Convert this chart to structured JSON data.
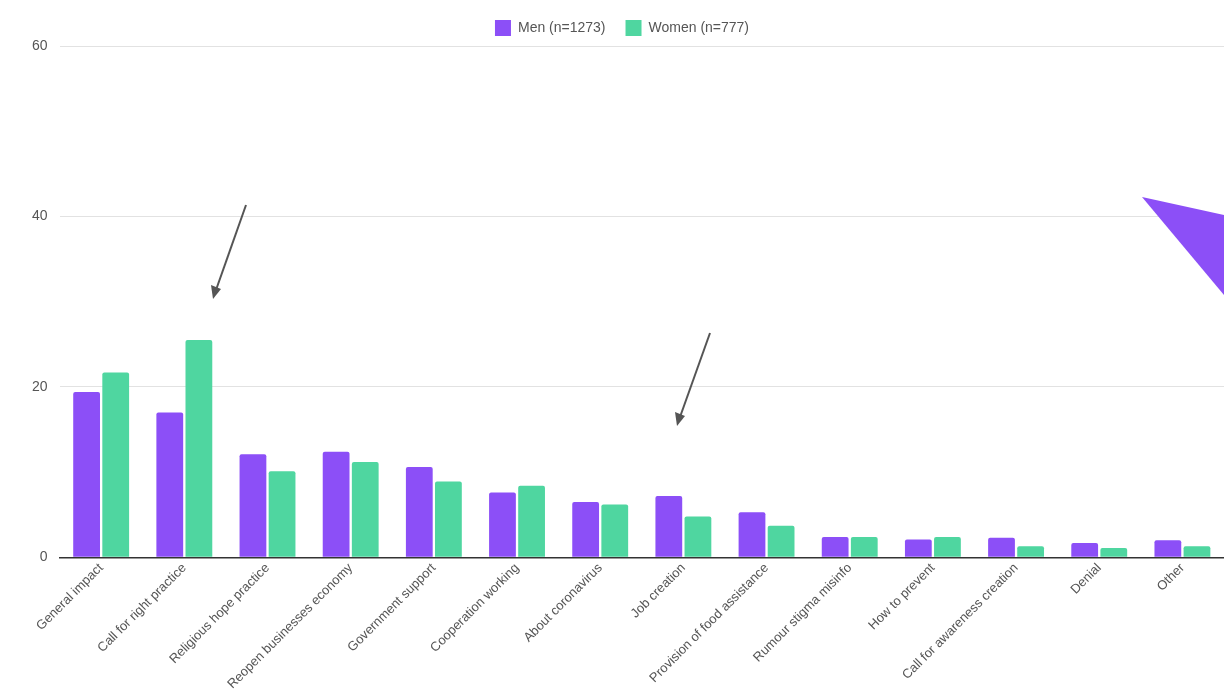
{
  "chart_data": {
    "type": "bar",
    "categories": [
      "General impact",
      "Call for right practice",
      "Religious hope practice",
      "Reopen businesses economy",
      "Government support",
      "Cooperation working",
      "About coronavirus",
      "Job creation",
      "Provision of food assistance",
      "Rumour stigma misinfo",
      "How to prevent",
      "Call for awareness creation",
      "Denial",
      "Other"
    ],
    "series": [
      {
        "name": "Men (n=1273)",
        "color": "#8c4ff7",
        "values": [
          19.4,
          17.0,
          12.1,
          12.4,
          10.6,
          7.6,
          6.5,
          7.2,
          5.3,
          2.4,
          2.1,
          2.3,
          1.7,
          2.0
        ]
      },
      {
        "name": "Women (n=777)",
        "color": "#4fd6a0",
        "values": [
          21.7,
          25.5,
          10.1,
          11.2,
          8.9,
          8.4,
          6.2,
          4.8,
          3.7,
          2.4,
          2.4,
          1.3,
          1.1,
          1.3
        ]
      }
    ],
    "ylim": [
      0,
      60
    ],
    "yticks": [
      0,
      20,
      40,
      60
    ],
    "grid": "y",
    "legend": "top"
  }
}
